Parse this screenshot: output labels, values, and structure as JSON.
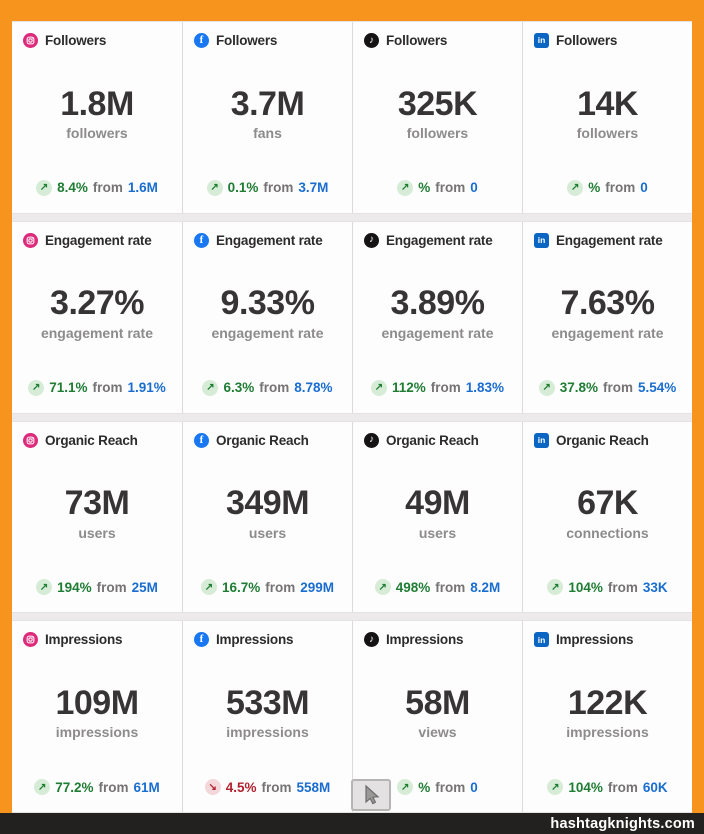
{
  "footer": {
    "watermark": "hashtagknights.com"
  },
  "labels": {
    "from_word": "from"
  },
  "icons": {
    "trend_up": "↗",
    "trend_down": "↘",
    "facebook_glyph": "f",
    "linkedin_glyph": "in",
    "tiktok_glyph": "♪"
  },
  "colors": {
    "frame_orange": "#F7941E",
    "footer_dark": "#232020",
    "up_green": "#1E7C33",
    "down_red": "#B2212F",
    "prev_blue": "#1A6DD0",
    "instagram_pink": "#DD2A7B",
    "facebook_blue": "#1877F2",
    "tiktok_black": "#161314",
    "linkedin_blue": "#0A66C2"
  },
  "rows": [
    {
      "metric": "Followers",
      "cards": [
        {
          "network": "instagram",
          "value": "1.8M",
          "unit": "followers",
          "change": {
            "dir": "up",
            "pct": "8.4%",
            "from": "1.6M"
          }
        },
        {
          "network": "facebook",
          "value": "3.7M",
          "unit": "fans",
          "change": {
            "dir": "up",
            "pct": "0.1%",
            "from": "3.7M"
          }
        },
        {
          "network": "tiktok",
          "value": "325K",
          "unit": "followers",
          "change": {
            "dir": "up",
            "pct": "%",
            "from": "0"
          }
        },
        {
          "network": "linkedin",
          "value": "14K",
          "unit": "followers",
          "change": {
            "dir": "up",
            "pct": "%",
            "from": "0"
          }
        }
      ]
    },
    {
      "metric": "Engagement rate",
      "cards": [
        {
          "network": "instagram",
          "value": "3.27%",
          "unit": "engagement rate",
          "change": {
            "dir": "up",
            "pct": "71.1%",
            "from": "1.91%"
          }
        },
        {
          "network": "facebook",
          "value": "9.33%",
          "unit": "engagement rate",
          "change": {
            "dir": "up",
            "pct": "6.3%",
            "from": "8.78%"
          }
        },
        {
          "network": "tiktok",
          "value": "3.89%",
          "unit": "engagement rate",
          "change": {
            "dir": "up",
            "pct": "112%",
            "from": "1.83%"
          }
        },
        {
          "network": "linkedin",
          "value": "7.63%",
          "unit": "engagement rate",
          "change": {
            "dir": "up",
            "pct": "37.8%",
            "from": "5.54%"
          }
        }
      ]
    },
    {
      "metric": "Organic Reach",
      "cards": [
        {
          "network": "instagram",
          "value": "73M",
          "unit": "users",
          "change": {
            "dir": "up",
            "pct": "194%",
            "from": "25M"
          }
        },
        {
          "network": "facebook",
          "value": "349M",
          "unit": "users",
          "change": {
            "dir": "up",
            "pct": "16.7%",
            "from": "299M"
          }
        },
        {
          "network": "tiktok",
          "value": "49M",
          "unit": "users",
          "change": {
            "dir": "up",
            "pct": "498%",
            "from": "8.2M"
          }
        },
        {
          "network": "linkedin",
          "value": "67K",
          "unit": "connections",
          "change": {
            "dir": "up",
            "pct": "104%",
            "from": "33K"
          }
        }
      ]
    },
    {
      "metric": "Impressions",
      "cards": [
        {
          "network": "instagram",
          "value": "109M",
          "unit": "impressions",
          "change": {
            "dir": "up",
            "pct": "77.2%",
            "from": "61M"
          }
        },
        {
          "network": "facebook",
          "value": "533M",
          "unit": "impressions",
          "change": {
            "dir": "down",
            "pct": "4.5%",
            "from": "558M"
          }
        },
        {
          "network": "tiktok",
          "value": "58M",
          "unit": "views",
          "change": {
            "dir": "up",
            "pct": "%",
            "from": "0"
          }
        },
        {
          "network": "linkedin",
          "value": "122K",
          "unit": "impressions",
          "change": {
            "dir": "up",
            "pct": "104%",
            "from": "60K"
          }
        }
      ]
    }
  ]
}
